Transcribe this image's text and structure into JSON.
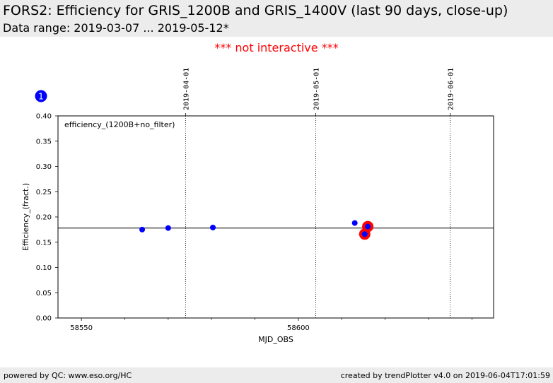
{
  "header": {
    "title": "FORS2: Efficiency for GRIS_1200B and GRIS_1400V (last 90 days, close-up)",
    "subtitle": "Data range: 2019-03-07 ... 2019-05-12*"
  },
  "notice": "*** not interactive ***",
  "badge": "1",
  "footer": {
    "left": "powered by QC: www.eso.org/HC",
    "right": "created by trendPlotter v4.0 on 2019-06-04T17:01:59"
  },
  "colors": {
    "points": "#0000ff",
    "highlight": "#ff0000",
    "badge": "#0000ff"
  },
  "chart_data": {
    "type": "scatter",
    "xlabel": "MJD_OBS",
    "ylabel": "Efficiency_(fract.)",
    "annotation": "efficiency_(1200B+no_filter)",
    "xlim": [
      58544.6,
      58645.0
    ],
    "ylim": [
      0.0,
      0.4
    ],
    "xticks": [
      58550,
      58600
    ],
    "xtick_labels": [
      "58550",
      "58600"
    ],
    "yticks": [
      0.0,
      0.05,
      0.1,
      0.15,
      0.2,
      0.25,
      0.3,
      0.35,
      0.4
    ],
    "ytick_labels": [
      "0.00",
      "0.05",
      "0.10",
      "0.15",
      "0.20",
      "0.25",
      "0.30",
      "0.35",
      "0.40"
    ],
    "date_lines": [
      {
        "x": 58574,
        "label": "2019-04-01"
      },
      {
        "x": 58604,
        "label": "2019-05-01"
      },
      {
        "x": 58635,
        "label": "2019-06-01"
      }
    ],
    "reference_line": 0.178,
    "points": [
      {
        "x": 58564.0,
        "y": 0.175
      },
      {
        "x": 58570.0,
        "y": 0.178
      },
      {
        "x": 58580.3,
        "y": 0.179
      },
      {
        "x": 58613.0,
        "y": 0.188
      },
      {
        "x": 58615.3,
        "y": 0.166
      },
      {
        "x": 58616.0,
        "y": 0.181
      }
    ],
    "highlighted": [
      {
        "x": 58615.3,
        "y": 0.166
      },
      {
        "x": 58616.0,
        "y": 0.181
      }
    ],
    "grid": false
  }
}
